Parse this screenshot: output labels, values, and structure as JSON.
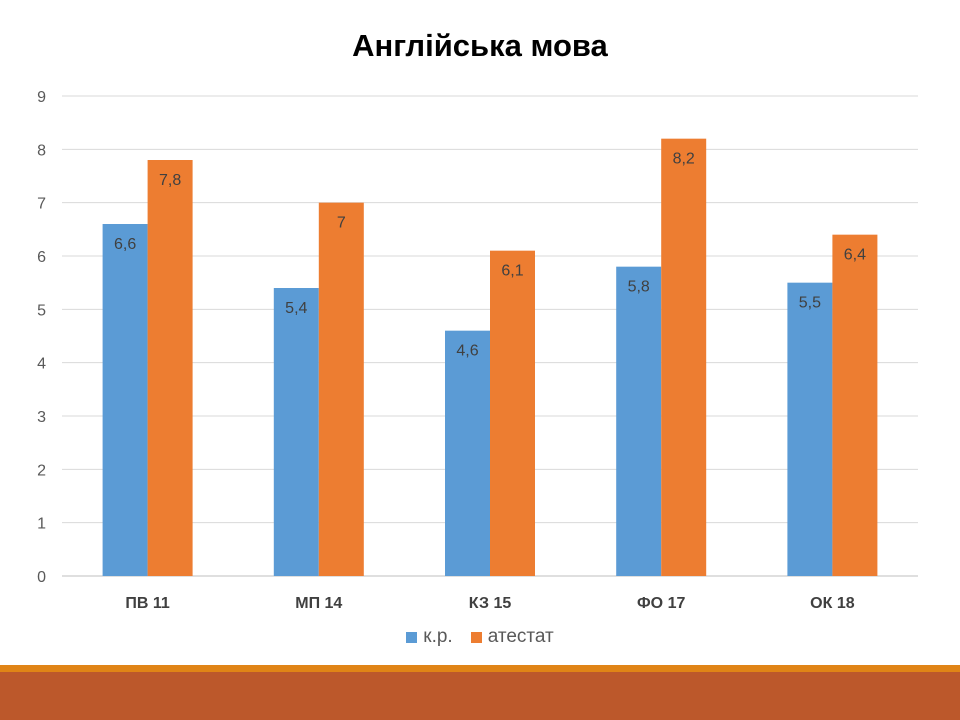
{
  "chart_data": {
    "type": "bar",
    "title": "Англійська мова",
    "categories": [
      "ПВ 11",
      "МП 14",
      "КЗ 15",
      "ФО 17",
      "ОК 18"
    ],
    "series": [
      {
        "name": "к.р.",
        "color": "#5B9BD5",
        "values": [
          6.6,
          5.4,
          4.6,
          5.8,
          5.5
        ],
        "labels": [
          "6,6",
          "5,4",
          "4,6",
          "5,8",
          "5,5"
        ]
      },
      {
        "name": "атестат",
        "color": "#ED7D31",
        "values": [
          7.8,
          7,
          6.1,
          8.2,
          6.4
        ],
        "labels": [
          "7,8",
          "7",
          "6,1",
          "8,2",
          "6,4"
        ]
      }
    ],
    "ylim": [
      0,
      9
    ],
    "yticks": [
      "0",
      "1",
      "2",
      "3",
      "4",
      "5",
      "6",
      "7",
      "8",
      "9"
    ],
    "grid": true,
    "legend": "bottom"
  },
  "colors": {
    "footer_strip": "#E08416",
    "footer": "#BC582B"
  }
}
